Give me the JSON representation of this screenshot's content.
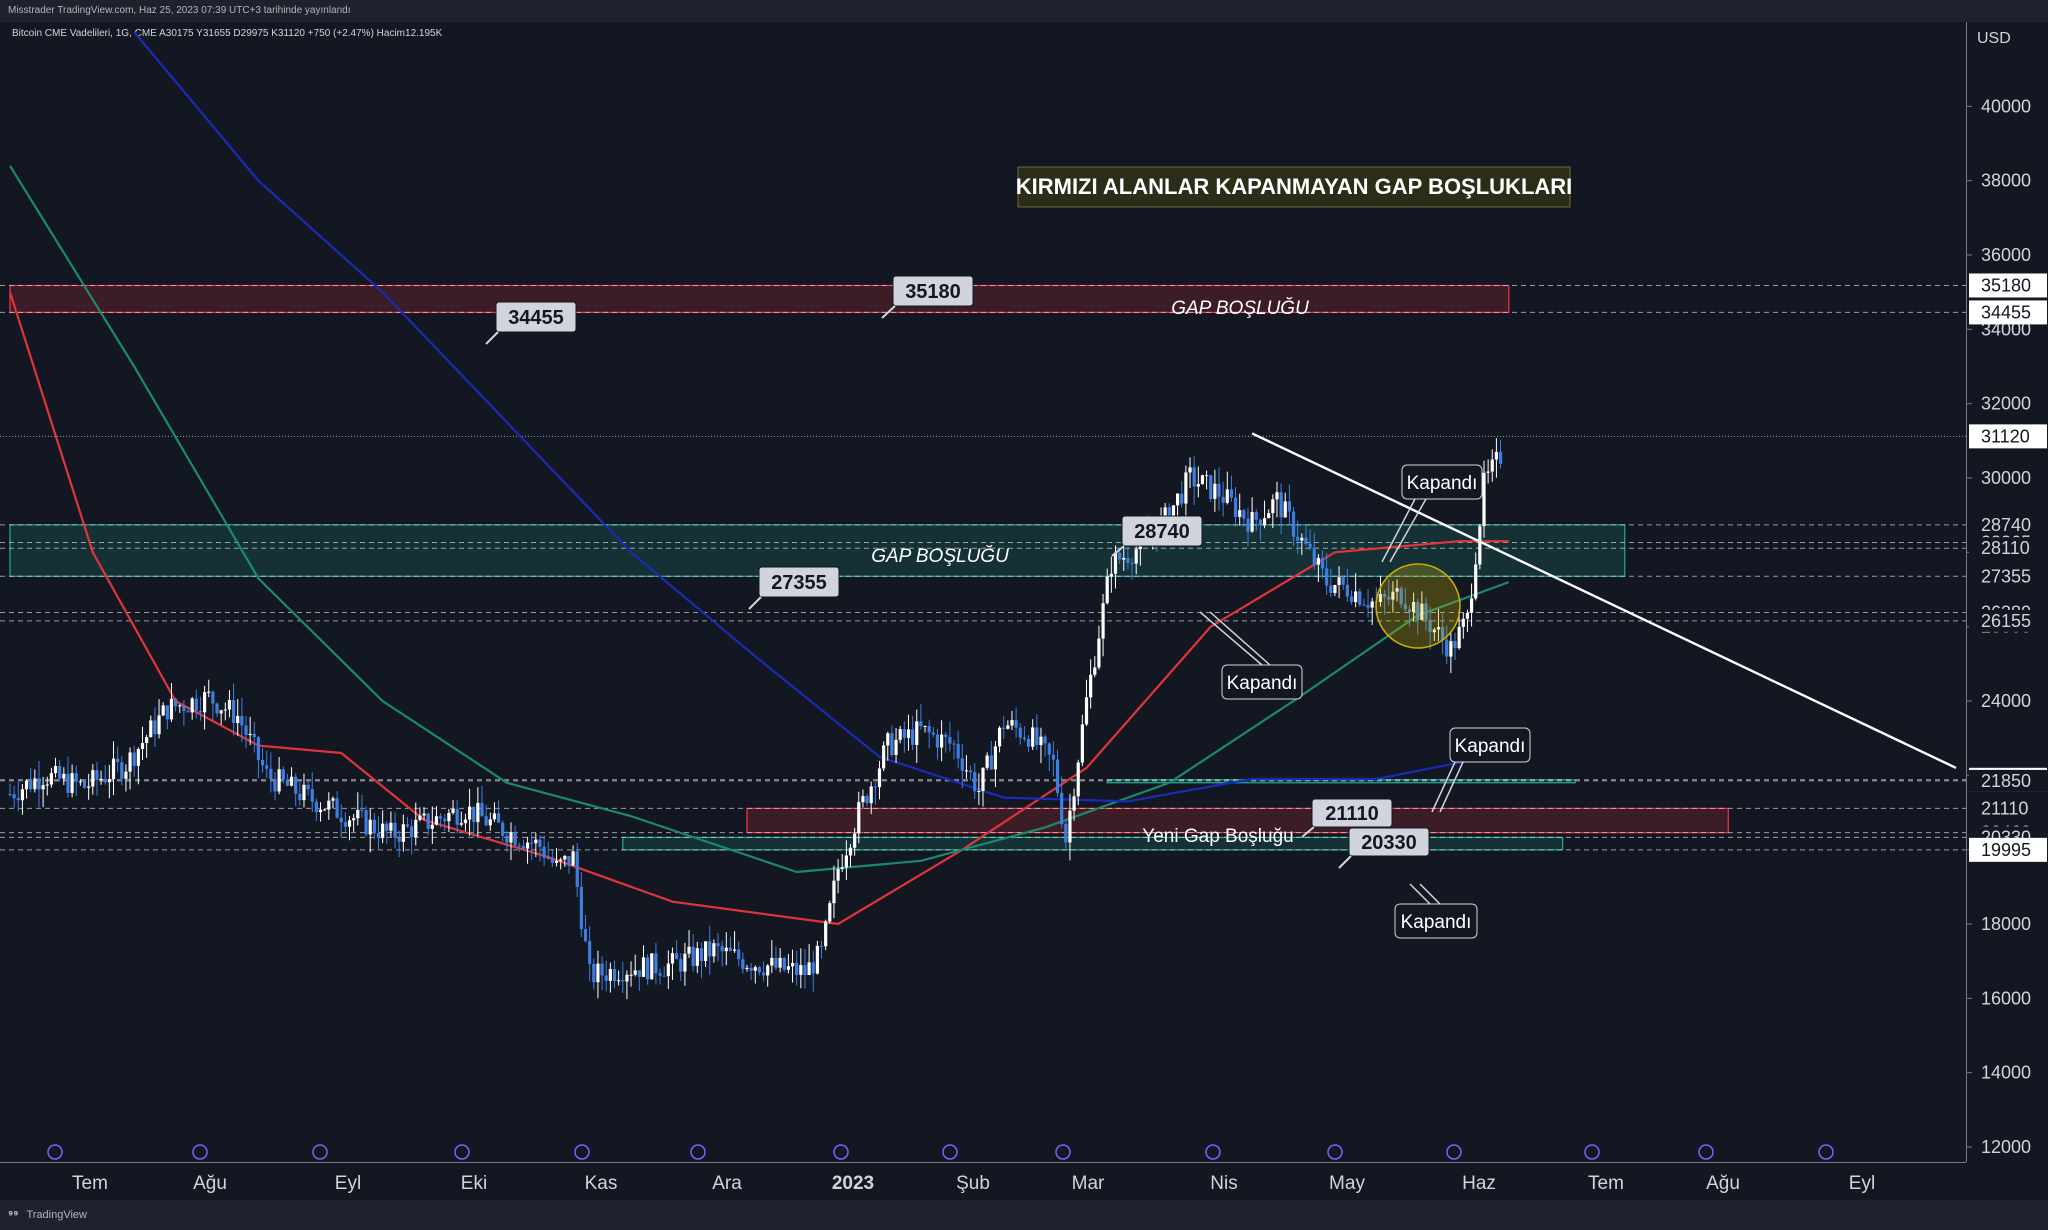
{
  "header": {
    "publisher": "Misstrader TradingView.com, Haz 25, 2023 07:39 UTC+3 tarihinde yayınlandı",
    "symbol_line": "Bitcoin CME Vadelileri, 1G, CME  A30175  Y31655  D29975  K31120  +750 (+2.47%)  Hacim12.195K"
  },
  "footer": {
    "brand": "TradingView"
  },
  "currency": "USD",
  "title_box": "KIRMIZI ALANLAR KAPANMAYAN GAP BOŞLUKLARI",
  "annotations": {
    "gap_top": "GAP BOŞLUĞU",
    "gap_mid": "GAP BOŞLUĞU",
    "new_gap": "Yeni Gap Boşluğu",
    "closed": "Kapandı",
    "tag_35180": "35180",
    "tag_34455": "34455",
    "tag_28740": "28740",
    "tag_27355": "27355",
    "tag_21110": "21110",
    "tag_20330": "20330"
  },
  "colors": {
    "background": "#131722",
    "candle_up": "#ffffff",
    "candle_down": "#3d7fe0",
    "ma_red": "#e0343a",
    "ma_green": "#1a8a6e",
    "ma_blue": "#1a2bb5",
    "gap_red": "#f23645",
    "gap_green": "#22ab94",
    "title_bg": "#2b2d18",
    "circle": "#c8b400"
  },
  "chart_data": {
    "type": "candlestick",
    "ylim": [
      12000,
      42000
    ],
    "y_ticks": [
      12000,
      14000,
      16000,
      18000,
      20000,
      22000,
      24000,
      26000,
      28000,
      30000,
      32000,
      34000,
      36000,
      38000,
      40000
    ],
    "y_tick_labels": [
      "12000",
      "14000",
      "16000",
      "18000",
      "20000",
      "22000",
      "24000",
      "26000",
      "28000",
      "30000",
      "32000",
      "34000",
      "36000",
      "38000",
      "40000"
    ],
    "x_ticks": [
      "Tem",
      "Ağu",
      "Eyl",
      "Eki",
      "Kas",
      "Ara",
      "2023",
      "Şub",
      "Mar",
      "Nis",
      "May",
      "Haz",
      "Tem",
      "Ağu",
      "Eyl"
    ],
    "price_labels": [
      {
        "value": 35180,
        "text": "35180",
        "style": "boxed"
      },
      {
        "value": 34455,
        "text": "34455",
        "style": "boxed"
      },
      {
        "value": 31120,
        "text": "31120",
        "style": "boxed"
      },
      {
        "value": 28740,
        "text": "28740",
        "style": "plain"
      },
      {
        "value": 28265,
        "text": "28265",
        "style": "plain"
      },
      {
        "value": 28110,
        "text": "28110",
        "style": "plain"
      },
      {
        "value": 27355,
        "text": "27355",
        "style": "plain"
      },
      {
        "value": 26380,
        "text": "26380",
        "style": "plain"
      },
      {
        "value": 26155,
        "text": "26155",
        "style": "plain"
      },
      {
        "value": 21880,
        "text": "21880",
        "style": "boxed"
      },
      {
        "value": 21850,
        "text": "21850",
        "style": "plain"
      },
      {
        "value": 21110,
        "text": "21110",
        "style": "plain"
      },
      {
        "value": 20460,
        "text": "20460",
        "style": "plain"
      },
      {
        "value": 20330,
        "text": "20330",
        "style": "plain"
      },
      {
        "value": 19995,
        "text": "19995",
        "style": "boxed"
      }
    ],
    "price_path": [
      [
        0,
        21500
      ],
      [
        8,
        22000
      ],
      [
        18,
        21700
      ],
      [
        28,
        22300
      ],
      [
        38,
        23800
      ],
      [
        48,
        24100
      ],
      [
        55,
        23600
      ],
      [
        62,
        22000
      ],
      [
        72,
        21400
      ],
      [
        82,
        20900
      ],
      [
        92,
        20400
      ],
      [
        100,
        20700
      ],
      [
        110,
        21100
      ],
      [
        118,
        20600
      ],
      [
        128,
        20100
      ],
      [
        132,
        19500
      ],
      [
        136,
        19800
      ],
      [
        140,
        16600
      ],
      [
        148,
        16800
      ],
      [
        160,
        16900
      ],
      [
        170,
        17300
      ],
      [
        178,
        17000
      ],
      [
        186,
        16800
      ],
      [
        192,
        16700
      ],
      [
        196,
        17200
      ],
      [
        200,
        19500
      ],
      [
        205,
        21000
      ],
      [
        212,
        22800
      ],
      [
        220,
        23200
      ],
      [
        228,
        22800
      ],
      [
        234,
        21600
      ],
      [
        240,
        23400
      ],
      [
        246,
        23100
      ],
      [
        252,
        22300
      ],
      [
        255,
        20300
      ],
      [
        260,
        24000
      ],
      [
        266,
        27700
      ],
      [
        272,
        28100
      ],
      [
        278,
        28700
      ],
      [
        285,
        30000
      ],
      [
        292,
        29600
      ],
      [
        300,
        28800
      ],
      [
        306,
        29400
      ],
      [
        312,
        28300
      ],
      [
        318,
        27200
      ],
      [
        324,
        27000
      ],
      [
        330,
        26600
      ],
      [
        336,
        26900
      ],
      [
        342,
        26200
      ],
      [
        348,
        25400
      ],
      [
        352,
        26200
      ],
      [
        356,
        29800
      ],
      [
        360,
        30600
      ]
    ],
    "moving_averages": [
      {
        "color": "red",
        "points": [
          [
            0,
            35000
          ],
          [
            20,
            28000
          ],
          [
            40,
            24000
          ],
          [
            60,
            22800
          ],
          [
            80,
            22600
          ],
          [
            100,
            20800
          ],
          [
            130,
            19800
          ],
          [
            160,
            18600
          ],
          [
            200,
            18000
          ],
          [
            230,
            20000
          ],
          [
            260,
            22200
          ],
          [
            290,
            26000
          ],
          [
            320,
            28000
          ],
          [
            350,
            28300
          ],
          [
            362,
            28300
          ]
        ]
      },
      {
        "color": "green",
        "points": [
          [
            0,
            38400
          ],
          [
            30,
            33000
          ],
          [
            60,
            27300
          ],
          [
            90,
            24000
          ],
          [
            120,
            21800
          ],
          [
            150,
            20900
          ],
          [
            190,
            19400
          ],
          [
            220,
            19700
          ],
          [
            250,
            20600
          ],
          [
            280,
            21800
          ],
          [
            310,
            24000
          ],
          [
            340,
            26300
          ],
          [
            362,
            27200
          ]
        ]
      },
      {
        "color": "blue",
        "points": [
          [
            30,
            42000
          ],
          [
            60,
            38000
          ],
          [
            90,
            35000
          ],
          [
            120,
            31500
          ],
          [
            150,
            28000
          ],
          [
            180,
            25200
          ],
          [
            210,
            22500
          ],
          [
            240,
            21400
          ],
          [
            270,
            21300
          ],
          [
            300,
            21900
          ],
          [
            330,
            21900
          ],
          [
            362,
            22600
          ]
        ]
      }
    ],
    "zones": [
      {
        "type": "red",
        "from": 34455,
        "to": 35180,
        "x_start": 0,
        "x_end": 362
      },
      {
        "type": "green",
        "from": 27355,
        "to": 28740,
        "x_start": 0,
        "x_end": 390
      },
      {
        "type": "red",
        "from": 20460,
        "to": 21110,
        "x_start": 178,
        "x_end": 415
      },
      {
        "type": "green",
        "from": 21850,
        "to": 21880,
        "x_start": 265,
        "x_end": 378
      },
      {
        "type": "green",
        "from": 19995,
        "to": 20330,
        "x_start": 148,
        "x_end": 375
      }
    ],
    "trendline": [
      [
        300,
        31200
      ],
      [
        470,
        22200
      ]
    ],
    "x_max": 470,
    "legend": "none",
    "grid": false
  }
}
